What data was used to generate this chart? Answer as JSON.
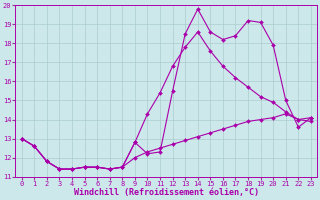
{
  "xlabel": "Windchill (Refroidissement éolien,°C)",
  "background_color": "#cce8ea",
  "grid_color": "#aacccc",
  "line_color": "#aa00aa",
  "xlim": [
    -0.5,
    23.5
  ],
  "ylim": [
    11,
    20
  ],
  "xticks": [
    0,
    1,
    2,
    3,
    4,
    5,
    6,
    7,
    8,
    9,
    10,
    11,
    12,
    13,
    14,
    15,
    16,
    17,
    18,
    19,
    20,
    21,
    22,
    23
  ],
  "yticks": [
    11,
    12,
    13,
    14,
    15,
    16,
    17,
    18,
    19,
    20
  ],
  "line1_x": [
    0,
    1,
    2,
    3,
    4,
    5,
    6,
    7,
    8,
    9,
    10,
    11,
    12,
    13,
    14,
    15,
    16,
    17,
    18,
    19,
    20,
    21,
    22,
    23
  ],
  "line1_y": [
    13.0,
    12.6,
    11.8,
    11.4,
    11.4,
    11.5,
    11.5,
    11.4,
    11.5,
    12.8,
    12.2,
    12.3,
    15.5,
    18.5,
    19.8,
    18.6,
    18.2,
    18.4,
    19.2,
    19.1,
    17.9,
    15.0,
    13.6,
    14.1
  ],
  "line2_x": [
    0,
    1,
    2,
    3,
    4,
    5,
    6,
    7,
    8,
    9,
    10,
    11,
    12,
    13,
    14,
    15,
    16,
    17,
    18,
    19,
    20,
    21,
    22,
    23
  ],
  "line2_y": [
    13.0,
    12.6,
    11.8,
    11.4,
    11.4,
    11.5,
    11.5,
    11.4,
    11.5,
    12.8,
    14.3,
    15.4,
    16.8,
    17.8,
    18.6,
    17.6,
    16.8,
    16.2,
    15.7,
    15.2,
    14.9,
    14.4,
    14.0,
    13.9
  ],
  "line3_x": [
    0,
    1,
    2,
    3,
    4,
    5,
    6,
    7,
    8,
    9,
    10,
    11,
    12,
    13,
    14,
    15,
    16,
    17,
    18,
    19,
    20,
    21,
    22,
    23
  ],
  "line3_y": [
    13.0,
    12.6,
    11.8,
    11.4,
    11.4,
    11.5,
    11.5,
    11.4,
    11.5,
    12.0,
    12.3,
    12.5,
    12.7,
    12.9,
    13.1,
    13.3,
    13.5,
    13.7,
    13.9,
    14.0,
    14.1,
    14.3,
    14.0,
    14.1
  ],
  "marker": "D",
  "markersize": 2,
  "linewidth": 0.8,
  "tick_fontsize": 5,
  "xlabel_fontsize": 6,
  "tick_color": "#993399"
}
